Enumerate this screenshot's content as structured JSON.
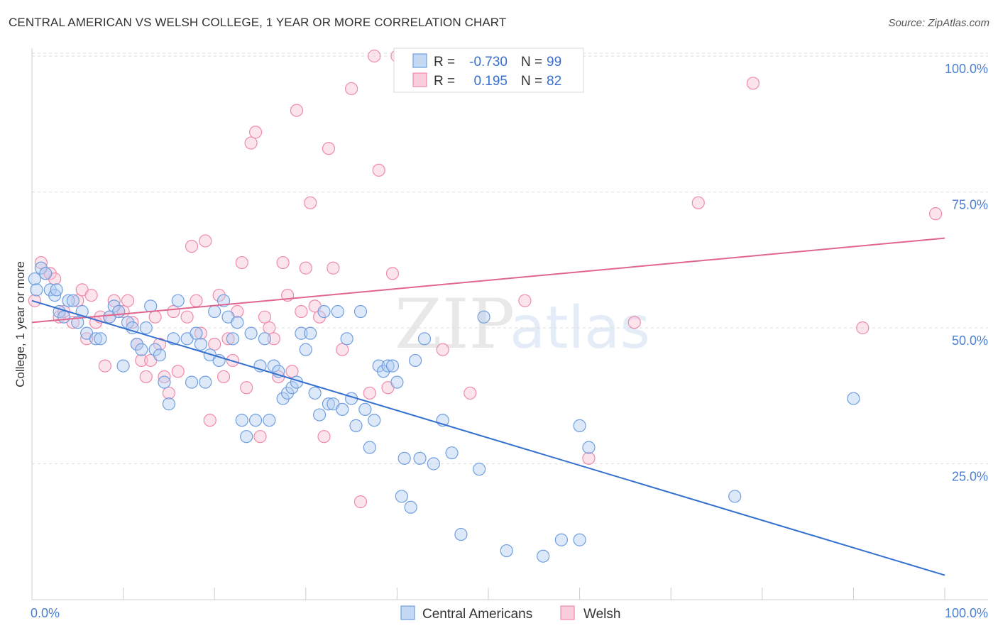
{
  "title": "CENTRAL AMERICAN VS WELSH COLLEGE, 1 YEAR OR MORE CORRELATION CHART",
  "source": "Source: ZipAtlas.com",
  "watermark": "ZIPatlas",
  "colors": {
    "blue": "#6f9fe0",
    "blue_line": "#3370d0",
    "pink": "#ef8aaa",
    "pink_line": "#e06690",
    "axis_text": "#4a7fd1"
  },
  "legend": {
    "r_label": "R =",
    "n_label": "N =",
    "rows": [
      {
        "series": "Central Americans",
        "r": "-0.730",
        "n": "99"
      },
      {
        "series": "Welsh",
        "r": "0.195",
        "n": "82"
      }
    ]
  },
  "chart_data": {
    "type": "scatter",
    "title": "CENTRAL AMERICAN VS WELSH COLLEGE, 1 YEAR OR MORE CORRELATION CHART",
    "xlabel": "",
    "ylabel": "College, 1 year or more",
    "xlim": [
      0,
      100
    ],
    "ylim": [
      0,
      104
    ],
    "x_tick_labels": [
      "0.0%",
      "100.0%"
    ],
    "y_tick_labels": [
      "25.0%",
      "50.0%",
      "75.0%",
      "100.0%"
    ],
    "y_ticks": [
      25,
      50,
      75,
      100
    ],
    "grid": true,
    "legend_position": "top-center",
    "series": [
      {
        "name": "Central Americans",
        "color": "#6f9fe0",
        "trend": {
          "x": [
            0,
            100
          ],
          "y": [
            55,
            4.5
          ]
        },
        "points": [
          [
            0.3,
            59
          ],
          [
            1,
            61
          ],
          [
            1.5,
            60
          ],
          [
            2,
            57
          ],
          [
            2.5,
            56
          ],
          [
            3,
            53
          ],
          [
            3.5,
            52
          ],
          [
            4,
            55
          ],
          [
            4.5,
            55
          ],
          [
            5,
            51
          ],
          [
            5.5,
            53
          ],
          [
            6,
            49
          ],
          [
            7,
            48
          ],
          [
            7.5,
            48
          ],
          [
            8.5,
            52
          ],
          [
            9,
            54
          ],
          [
            9.5,
            53
          ],
          [
            10,
            43
          ],
          [
            10.5,
            51
          ],
          [
            11,
            50
          ],
          [
            11.5,
            47
          ],
          [
            12,
            46
          ],
          [
            12.5,
            50
          ],
          [
            13,
            54
          ],
          [
            13.5,
            46
          ],
          [
            14,
            45
          ],
          [
            14.5,
            40
          ],
          [
            15,
            36
          ],
          [
            15.5,
            48
          ],
          [
            16,
            55
          ],
          [
            17,
            48
          ],
          [
            17.5,
            40
          ],
          [
            18,
            49
          ],
          [
            18.5,
            47
          ],
          [
            19,
            40
          ],
          [
            19.5,
            45
          ],
          [
            20,
            53
          ],
          [
            20.5,
            44
          ],
          [
            21,
            55
          ],
          [
            21.5,
            52
          ],
          [
            22,
            48
          ],
          [
            22.5,
            51
          ],
          [
            23,
            33
          ],
          [
            23.5,
            30
          ],
          [
            24,
            49
          ],
          [
            24.5,
            33
          ],
          [
            25,
            43
          ],
          [
            25.5,
            48
          ],
          [
            26,
            33
          ],
          [
            26.5,
            43
          ],
          [
            27,
            42
          ],
          [
            27.5,
            37
          ],
          [
            28,
            38
          ],
          [
            28.5,
            39
          ],
          [
            29,
            40
          ],
          [
            29.5,
            49
          ],
          [
            30,
            46
          ],
          [
            30.5,
            49
          ],
          [
            31,
            38
          ],
          [
            31.5,
            34
          ],
          [
            32,
            53
          ],
          [
            32.5,
            36
          ],
          [
            33,
            36
          ],
          [
            33.5,
            53
          ],
          [
            34,
            35
          ],
          [
            34.5,
            48
          ],
          [
            35,
            37
          ],
          [
            35.5,
            32
          ],
          [
            36,
            53
          ],
          [
            36.5,
            35
          ],
          [
            37,
            28
          ],
          [
            37.5,
            33
          ],
          [
            38,
            43
          ],
          [
            38.5,
            42
          ],
          [
            39,
            43
          ],
          [
            39.5,
            43
          ],
          [
            40,
            40
          ],
          [
            40.5,
            19
          ],
          [
            40.8,
            26
          ],
          [
            41.5,
            17
          ],
          [
            42,
            44
          ],
          [
            42.5,
            26
          ],
          [
            43,
            48
          ],
          [
            44,
            25
          ],
          [
            45,
            33
          ],
          [
            46,
            27
          ],
          [
            47,
            12
          ],
          [
            49,
            24
          ],
          [
            49.5,
            52
          ],
          [
            52,
            9
          ],
          [
            56,
            8
          ],
          [
            58,
            11
          ],
          [
            60,
            11
          ],
          [
            60,
            32
          ],
          [
            61,
            28
          ],
          [
            77,
            19
          ],
          [
            90,
            37
          ],
          [
            0.5,
            57
          ],
          [
            2.7,
            57
          ]
        ]
      },
      {
        "name": "Welsh",
        "color": "#ef8aaa",
        "trend": {
          "x": [
            0,
            100
          ],
          "y": [
            51,
            66.5
          ]
        },
        "points": [
          [
            0.3,
            55
          ],
          [
            1,
            62
          ],
          [
            1.5,
            60
          ],
          [
            2,
            60
          ],
          [
            2.5,
            59
          ],
          [
            3,
            52
          ],
          [
            3.5,
            53
          ],
          [
            4.5,
            51
          ],
          [
            5,
            55
          ],
          [
            5.5,
            57
          ],
          [
            6,
            48
          ],
          [
            6.5,
            56
          ],
          [
            7,
            51
          ],
          [
            7.5,
            52
          ],
          [
            8,
            43
          ],
          [
            8.5,
            52
          ],
          [
            9,
            55
          ],
          [
            9.5,
            53
          ],
          [
            10,
            53
          ],
          [
            10.5,
            55
          ],
          [
            11,
            51
          ],
          [
            11.5,
            47
          ],
          [
            12,
            44
          ],
          [
            12.5,
            41
          ],
          [
            13,
            44
          ],
          [
            13.5,
            52
          ],
          [
            14,
            47
          ],
          [
            14.5,
            41
          ],
          [
            15,
            38
          ],
          [
            15.5,
            53
          ],
          [
            16,
            42
          ],
          [
            17,
            52
          ],
          [
            17.5,
            65
          ],
          [
            18,
            55
          ],
          [
            18.5,
            49
          ],
          [
            19,
            66
          ],
          [
            19.5,
            33
          ],
          [
            20,
            47
          ],
          [
            20.5,
            56
          ],
          [
            21,
            41
          ],
          [
            21.5,
            48
          ],
          [
            22,
            44
          ],
          [
            22.5,
            53
          ],
          [
            23,
            62
          ],
          [
            23.5,
            39
          ],
          [
            24,
            84
          ],
          [
            24.5,
            86
          ],
          [
            25,
            30
          ],
          [
            25.5,
            52
          ],
          [
            26,
            50
          ],
          [
            26.5,
            48
          ],
          [
            27,
            41
          ],
          [
            27.5,
            62
          ],
          [
            28,
            56
          ],
          [
            28.5,
            42
          ],
          [
            29,
            90
          ],
          [
            29.5,
            53
          ],
          [
            30,
            61
          ],
          [
            30.5,
            73
          ],
          [
            31,
            54
          ],
          [
            31.5,
            52
          ],
          [
            32,
            30
          ],
          [
            32.5,
            83
          ],
          [
            33,
            61
          ],
          [
            34,
            46
          ],
          [
            35,
            94
          ],
          [
            36,
            18
          ],
          [
            37,
            38
          ],
          [
            37.5,
            100
          ],
          [
            38,
            79
          ],
          [
            39,
            39
          ],
          [
            39.5,
            60
          ],
          [
            40,
            100
          ],
          [
            45,
            46
          ],
          [
            48,
            38
          ],
          [
            54,
            55
          ],
          [
            61,
            26
          ],
          [
            66,
            51
          ],
          [
            73,
            73
          ],
          [
            79,
            95
          ],
          [
            91,
            50
          ],
          [
            99,
            71
          ]
        ]
      }
    ]
  },
  "bottom_legend": [
    {
      "label": "Central Americans"
    },
    {
      "label": "Welsh"
    }
  ]
}
